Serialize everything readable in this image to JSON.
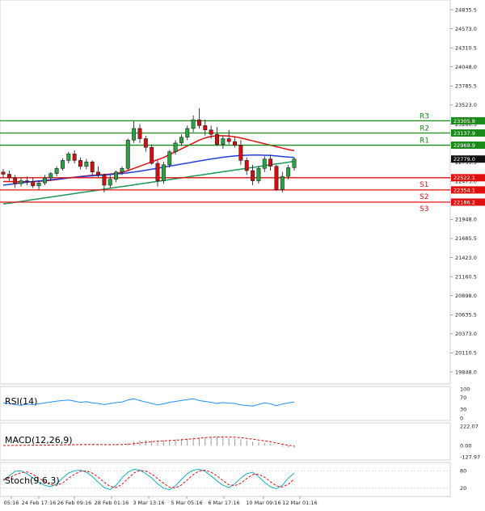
{
  "chart_data": {
    "type": "candlestick",
    "price_axis": {
      "ticks": [
        "24835.5",
        "24573.0",
        "24310.5",
        "24048.0",
        "23785.5",
        "23523.0",
        "23260.5",
        "22998.0",
        "22735.5",
        "22473.0",
        "22210.5",
        "21948.0",
        "21685.5",
        "21423.0",
        "21160.5",
        "20898.0",
        "20635.5",
        "20373.0",
        "20110.5",
        "19848.0"
      ],
      "range": [
        19848.0,
        24835.5
      ]
    },
    "time_axis": {
      "labels": [
        "05:16",
        "24 Feb 17:16",
        "26 Feb 09:16",
        "28 Feb 01:16",
        "3 Mar 13:16",
        "5 Mar 05:16",
        "6 Mar 17:16",
        "10 Mar 09:16",
        "12 Mar 01:16"
      ]
    },
    "levels": [
      {
        "name": "R3",
        "value": 23305.8,
        "label": "23305.8",
        "color": "#1a8a1a"
      },
      {
        "name": "R2",
        "value": 23137.9,
        "label": "23137.9",
        "color": "#1a8a1a"
      },
      {
        "name": "R1",
        "value": 22969.9,
        "label": "22969.9",
        "color": "#1a8a1a"
      },
      {
        "name": "S1",
        "value": 22522.1,
        "label": "22522.1",
        "color": "#e01010"
      },
      {
        "name": "S2",
        "value": 22354.1,
        "label": "22354.1",
        "color": "#e01010"
      },
      {
        "name": "S3",
        "value": 22186.2,
        "label": "22186.2",
        "color": "#e01010"
      }
    ],
    "current_price": {
      "value": 22779.0,
      "label": "22779.0"
    },
    "candles": [
      [
        22600,
        22640,
        22520,
        22570
      ],
      [
        22570,
        22620,
        22480,
        22520
      ],
      [
        22520,
        22560,
        22380,
        22440
      ],
      [
        22440,
        22520,
        22400,
        22480
      ],
      [
        22480,
        22540,
        22420,
        22470
      ],
      [
        22470,
        22520,
        22380,
        22410
      ],
      [
        22410,
        22480,
        22360,
        22450
      ],
      [
        22450,
        22560,
        22420,
        22520
      ],
      [
        22520,
        22600,
        22480,
        22580
      ],
      [
        22580,
        22680,
        22540,
        22650
      ],
      [
        22650,
        22790,
        22620,
        22760
      ],
      [
        22760,
        22880,
        22720,
        22850
      ],
      [
        22850,
        22900,
        22720,
        22760
      ],
      [
        22760,
        22800,
        22640,
        22680
      ],
      [
        22680,
        22780,
        22640,
        22740
      ],
      [
        22740,
        22760,
        22560,
        22600
      ],
      [
        22600,
        22680,
        22520,
        22560
      ],
      [
        22560,
        22580,
        22320,
        22420
      ],
      [
        22420,
        22560,
        22380,
        22500
      ],
      [
        22500,
        22620,
        22460,
        22600
      ],
      [
        22600,
        22680,
        22560,
        22650
      ],
      [
        22650,
        23060,
        22620,
        23040
      ],
      [
        23040,
        23300,
        23000,
        23200
      ],
      [
        23200,
        23260,
        23000,
        23060
      ],
      [
        23060,
        23100,
        22880,
        22940
      ],
      [
        22940,
        22980,
        22700,
        22720
      ],
      [
        22720,
        22760,
        22400,
        22480
      ],
      [
        22480,
        22740,
        22440,
        22700
      ],
      [
        22700,
        22900,
        22660,
        22880
      ],
      [
        22880,
        23040,
        22840,
        23000
      ],
      [
        23000,
        23120,
        22960,
        23080
      ],
      [
        23080,
        23240,
        23040,
        23200
      ],
      [
        23200,
        23380,
        23150,
        23320
      ],
      [
        23320,
        23480,
        23200,
        23240
      ],
      [
        23240,
        23320,
        23100,
        23180
      ],
      [
        23180,
        23240,
        23060,
        23120
      ],
      [
        23120,
        23220,
        22960,
        22980
      ],
      [
        22980,
        23100,
        22920,
        23060
      ],
      [
        23060,
        23180,
        22980,
        23020
      ],
      [
        23020,
        23080,
        22940,
        22970
      ],
      [
        22970,
        23040,
        22700,
        22760
      ],
      [
        22760,
        22800,
        22560,
        22620
      ],
      [
        22620,
        22700,
        22420,
        22480
      ],
      [
        22480,
        22680,
        22440,
        22650
      ],
      [
        22650,
        22820,
        22600,
        22780
      ],
      [
        22780,
        22840,
        22620,
        22680
      ],
      [
        22680,
        22700,
        22340,
        22360
      ],
      [
        22360,
        22600,
        22320,
        22540
      ],
      [
        22540,
        22700,
        22500,
        22660
      ],
      [
        22660,
        22800,
        22620,
        22779
      ]
    ],
    "moving_averages": [
      {
        "color": "#e01010",
        "values": [
          22470,
          22470,
          22468,
          22466,
          22466,
          22468,
          22472,
          22478,
          22486,
          22496,
          22508,
          22520,
          22530,
          22540,
          22548,
          22555,
          22560,
          22565,
          22572,
          22582,
          22596,
          22620,
          22650,
          22680,
          22710,
          22740,
          22770,
          22800,
          22840,
          22880,
          22920,
          22960,
          23000,
          23040,
          23070,
          23090,
          23100,
          23100,
          23095,
          23085,
          23070,
          23050,
          23030,
          23010,
          22990,
          22970,
          22950,
          22930,
          22910,
          22895
        ]
      },
      {
        "color": "#2040e0",
        "values": [
          22420,
          22430,
          22440,
          22450,
          22460,
          22470,
          22478,
          22486,
          22494,
          22502,
          22510,
          22518,
          22526,
          22534,
          22542,
          22548,
          22554,
          22560,
          22566,
          22572,
          22580,
          22590,
          22600,
          22612,
          22626,
          22640,
          22654,
          22668,
          22682,
          22696,
          22710,
          22724,
          22738,
          22752,
          22766,
          22780,
          22792,
          22804,
          22814,
          22822,
          22828,
          22832,
          22834,
          22834,
          22832,
          22828,
          22822,
          22814,
          22806,
          22800
        ]
      },
      {
        "color": "#1a9a5a",
        "values": [
          22160,
          22172,
          22184,
          22196,
          22208,
          22220,
          22232,
          22244,
          22256,
          22268,
          22280,
          22292,
          22304,
          22316,
          22328,
          22340,
          22352,
          22364,
          22376,
          22388,
          22400,
          22412,
          22424,
          22436,
          22448,
          22460,
          22472,
          22484,
          22496,
          22508,
          22520,
          22532,
          22544,
          22556,
          22568,
          22580,
          22592,
          22604,
          22616,
          22628,
          22640,
          22652,
          22664,
          22676,
          22688,
          22700,
          22712,
          22724,
          22736,
          22748
        ]
      }
    ],
    "indicators": [
      {
        "name": "RSI(14)",
        "ticks": [
          "100",
          "70",
          "30",
          "0"
        ],
        "range": [
          0,
          100
        ],
        "values": [
          52,
          50,
          46,
          44,
          48,
          46,
          49,
          52,
          55,
          58,
          60,
          62,
          58,
          54,
          56,
          52,
          50,
          46,
          50,
          53,
          55,
          62,
          66,
          60,
          55,
          50,
          45,
          49,
          54,
          57,
          60,
          63,
          66,
          60,
          57,
          54,
          50,
          53,
          51,
          50,
          45,
          43,
          41,
          47,
          52,
          49,
          42,
          48,
          52,
          55
        ]
      },
      {
        "name": "MACD(12,26,9)",
        "ticks": [
          "222.07",
          "0.00",
          "-127.97"
        ],
        "range": [
          -127.97,
          222.07
        ],
        "histogram": [
          0,
          2,
          4,
          5,
          6,
          5,
          4,
          5,
          6,
          7,
          8,
          9,
          10,
          10,
          10,
          9,
          8,
          7,
          8,
          10,
          14,
          30,
          48,
          56,
          60,
          60,
          58,
          60,
          64,
          70,
          76,
          82,
          88,
          92,
          94,
          94,
          92,
          90,
          86,
          80,
          70,
          58,
          44,
          36,
          30,
          20,
          0,
          -14,
          -20,
          -24
        ],
        "signal": [
          0,
          1,
          2,
          3,
          4,
          5,
          5,
          5,
          6,
          7,
          8,
          9,
          10,
          11,
          12,
          12,
          12,
          11,
          11,
          11,
          12,
          16,
          22,
          30,
          38,
          44,
          50,
          54,
          58,
          62,
          66,
          72,
          78,
          84,
          90,
          95,
          98,
          99,
          98,
          95,
          90,
          82,
          74,
          64,
          54,
          44,
          30,
          16,
          4,
          -6
        ]
      },
      {
        "name": "Stoch(9,6,3)",
        "ticks": [
          "80",
          "20"
        ],
        "range": [
          0,
          100
        ],
        "k": [
          45,
          62,
          78,
          80,
          70,
          55,
          40,
          30,
          25,
          35,
          55,
          72,
          80,
          82,
          75,
          60,
          40,
          22,
          15,
          30,
          55,
          75,
          85,
          82,
          70,
          55,
          35,
          20,
          15,
          28,
          50,
          70,
          82,
          85,
          78,
          62,
          45,
          30,
          22,
          35,
          55,
          70,
          75,
          60,
          40,
          25,
          18,
          30,
          55,
          72
        ],
        "d": [
          50,
          55,
          66,
          73,
          76,
          68,
          55,
          42,
          32,
          30,
          38,
          54,
          68,
          78,
          79,
          72,
          58,
          40,
          26,
          22,
          33,
          53,
          72,
          81,
          79,
          69,
          53,
          37,
          23,
          21,
          31,
          49,
          67,
          79,
          82,
          75,
          62,
          46,
          32,
          29,
          37,
          53,
          67,
          68,
          58,
          42,
          28,
          24,
          34,
          52
        ]
      }
    ]
  }
}
